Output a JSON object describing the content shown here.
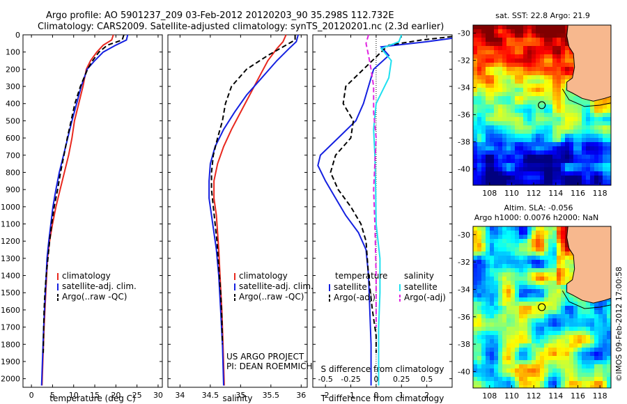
{
  "header": {
    "line1": "Argo profile: AO 5901237_209 03-Feb-2012 20120203_90 35.298S 112.732E",
    "line2": "Climatology: CARS2009. Satellite-adjusted climatology: synTS_20120201.nc (2.3d earlier)"
  },
  "side_text": "©IMOS 09-Feb-2012 17:00:58",
  "colors": {
    "climatology": "#e8281e",
    "satellite": "#1420e0",
    "argo": "#000000",
    "salinity_sat": "#1ee0f0",
    "salinity_argo": "#e024e0"
  },
  "chart_data": [
    {
      "type": "line",
      "id": "temperature",
      "xlabel": "temperature (deg C)",
      "xlim": [
        -2,
        31
      ],
      "ylim": [
        2050,
        0
      ],
      "xticks": [
        0,
        5,
        10,
        15,
        20,
        25,
        30
      ],
      "yticks": [
        0,
        100,
        200,
        300,
        400,
        500,
        600,
        700,
        800,
        900,
        1000,
        1100,
        1200,
        1300,
        1400,
        1500,
        1600,
        1700,
        1800,
        1900,
        2000
      ],
      "legend": [
        "climatology",
        "satellite-adj. clim.",
        "Argo(..raw -QC)"
      ],
      "series": [
        {
          "name": "climatology",
          "color": "#e8281e",
          "style": "solid",
          "points": [
            [
              19.4,
              0
            ],
            [
              19,
              30
            ],
            [
              17,
              60
            ],
            [
              15.5,
              100
            ],
            [
              14,
              150
            ],
            [
              13,
              200
            ],
            [
              12.2,
              300
            ],
            [
              11.2,
              400
            ],
            [
              10.2,
              500
            ],
            [
              9.6,
              600
            ],
            [
              8.8,
              700
            ],
            [
              7.8,
              800
            ],
            [
              6.8,
              900
            ],
            [
              5.8,
              1000
            ],
            [
              5,
              1100
            ],
            [
              4.3,
              1200
            ],
            [
              3.8,
              1300
            ],
            [
              3.4,
              1500
            ],
            [
              3,
              1700
            ],
            [
              2.7,
              1900
            ],
            [
              2.5,
              2040
            ]
          ]
        },
        {
          "name": "satellite-adj. clim.",
          "color": "#1420e0",
          "style": "solid",
          "points": [
            [
              22.8,
              0
            ],
            [
              22.5,
              30
            ],
            [
              20,
              60
            ],
            [
              17,
              100
            ],
            [
              15,
              150
            ],
            [
              13.2,
              200
            ],
            [
              11.8,
              300
            ],
            [
              10.7,
              400
            ],
            [
              9.6,
              500
            ],
            [
              8.6,
              600
            ],
            [
              7.6,
              700
            ],
            [
              6.6,
              800
            ],
            [
              5.8,
              900
            ],
            [
              5.1,
              1000
            ],
            [
              4.6,
              1100
            ],
            [
              4.1,
              1200
            ],
            [
              3.7,
              1300
            ],
            [
              3.3,
              1500
            ],
            [
              2.9,
              1700
            ],
            [
              2.6,
              1900
            ],
            [
              2.4,
              2040
            ]
          ]
        },
        {
          "name": "Argo(..raw -QC)",
          "color": "#000000",
          "style": "dashed",
          "points": [
            [
              21.9,
              0
            ],
            [
              21.5,
              30
            ],
            [
              18,
              60
            ],
            [
              16,
              100
            ],
            [
              14.5,
              150
            ],
            [
              13.3,
              200
            ],
            [
              11.6,
              300
            ],
            [
              10.3,
              400
            ],
            [
              9.4,
              500
            ],
            [
              8.5,
              600
            ],
            [
              7.7,
              700
            ],
            [
              6.9,
              800
            ],
            [
              6.2,
              900
            ],
            [
              5.4,
              1000
            ],
            [
              4.8,
              1100
            ],
            [
              4.3,
              1200
            ],
            [
              3.9,
              1300
            ],
            [
              3.5,
              1400
            ],
            [
              3.2,
              1500
            ],
            [
              3,
              1600
            ],
            [
              2.9,
              1700
            ],
            [
              2.8,
              1850
            ]
          ]
        }
      ]
    },
    {
      "type": "line",
      "id": "salinity",
      "xlabel": "salinity",
      "xlim": [
        33.8,
        36.1
      ],
      "ylim": [
        2050,
        0
      ],
      "xticks": [
        34,
        34.5,
        35,
        35.5,
        36
      ],
      "legend": [
        "climatology",
        "satellite-adj. clim.",
        "Argo(..raw -QC)"
      ],
      "annotation": [
        "US ARGO PROJECT",
        "PI: DEAN ROEMMICH"
      ],
      "series": [
        {
          "name": "climatology",
          "color": "#e8281e",
          "style": "solid",
          "points": [
            [
              35.75,
              0
            ],
            [
              35.7,
              40
            ],
            [
              35.6,
              80
            ],
            [
              35.45,
              150
            ],
            [
              35.3,
              250
            ],
            [
              35.15,
              350
            ],
            [
              35,
              450
            ],
            [
              34.85,
              550
            ],
            [
              34.72,
              650
            ],
            [
              34.62,
              750
            ],
            [
              34.56,
              850
            ],
            [
              34.56,
              950
            ],
            [
              34.6,
              1050
            ],
            [
              34.62,
              1150
            ],
            [
              34.64,
              1250
            ],
            [
              34.66,
              1400
            ],
            [
              34.69,
              1600
            ],
            [
              34.71,
              1800
            ],
            [
              34.73,
              2040
            ]
          ]
        },
        {
          "name": "satellite-adj. clim.",
          "color": "#1420e0",
          "style": "solid",
          "points": [
            [
              35.95,
              0
            ],
            [
              35.92,
              40
            ],
            [
              35.8,
              80
            ],
            [
              35.6,
              150
            ],
            [
              35.35,
              250
            ],
            [
              35.1,
              350
            ],
            [
              34.9,
              450
            ],
            [
              34.72,
              550
            ],
            [
              34.58,
              650
            ],
            [
              34.5,
              750
            ],
            [
              34.48,
              850
            ],
            [
              34.48,
              950
            ],
            [
              34.52,
              1050
            ],
            [
              34.56,
              1150
            ],
            [
              34.6,
              1250
            ],
            [
              34.64,
              1400
            ],
            [
              34.67,
              1600
            ],
            [
              34.7,
              1800
            ],
            [
              34.72,
              2040
            ]
          ]
        },
        {
          "name": "Argo(..raw -QC)",
          "color": "#000000",
          "style": "dashed",
          "points": [
            [
              35.9,
              0
            ],
            [
              35.9,
              30
            ],
            [
              35.75,
              60
            ],
            [
              35.45,
              120
            ],
            [
              35.1,
              200
            ],
            [
              34.85,
              300
            ],
            [
              34.75,
              400
            ],
            [
              34.7,
              500
            ],
            [
              34.62,
              600
            ],
            [
              34.55,
              700
            ],
            [
              34.52,
              800
            ],
            [
              34.52,
              900
            ],
            [
              34.55,
              1000
            ],
            [
              34.58,
              1100
            ],
            [
              34.61,
              1200
            ],
            [
              34.64,
              1350
            ],
            [
              34.67,
              1500
            ],
            [
              34.69,
              1650
            ],
            [
              34.7,
              1800
            ]
          ]
        }
      ]
    },
    {
      "type": "line",
      "id": "difference",
      "xlabel": "T difference from climatology",
      "xlabel_top": "S difference from climatology",
      "xlim": [
        -2.5,
        3
      ],
      "ylim": [
        2050,
        0
      ],
      "xticks": [
        -2,
        -1,
        0,
        1,
        2
      ],
      "xticks_top": [
        -0.5,
        -0.25,
        0,
        0.25,
        0.5
      ],
      "legend_headers": [
        "temperature",
        "salinity"
      ],
      "legend": [
        "satellite",
        "Argo(-adj)",
        "satellite",
        "Argo(-adj)"
      ],
      "series": [
        {
          "name": "satellite",
          "group": "temperature",
          "color": "#1420e0",
          "style": "solid",
          "points": [
            [
              3,
              20
            ],
            [
              2,
              40
            ],
            [
              0.2,
              70
            ],
            [
              0.5,
              120
            ],
            [
              -0.1,
              200
            ],
            [
              -0.3,
              300
            ],
            [
              -0.5,
              400
            ],
            [
              -0.8,
              500
            ],
            [
              -1.5,
              600
            ],
            [
              -2.2,
              700
            ],
            [
              -2.3,
              760
            ],
            [
              -2,
              850
            ],
            [
              -1.6,
              950
            ],
            [
              -1.2,
              1050
            ],
            [
              -0.7,
              1150
            ],
            [
              -0.4,
              1250
            ],
            [
              -0.3,
              1400
            ],
            [
              -0.25,
              1600
            ],
            [
              -0.2,
              1800
            ],
            [
              -0.2,
              2040
            ]
          ]
        },
        {
          "name": "Argo(-adj)",
          "group": "temperature",
          "color": "#000000",
          "style": "dashed",
          "points": [
            [
              3,
              10
            ],
            [
              1.8,
              30
            ],
            [
              0.5,
              60
            ],
            [
              0.2,
              100
            ],
            [
              -0.5,
              200
            ],
            [
              -1.2,
              300
            ],
            [
              -1.3,
              400
            ],
            [
              -0.9,
              500
            ],
            [
              -1,
              600
            ],
            [
              -1.6,
              700
            ],
            [
              -1.8,
              800
            ],
            [
              -1.5,
              900
            ],
            [
              -1,
              1000
            ],
            [
              -0.6,
              1100
            ],
            [
              -0.4,
              1200
            ],
            [
              -0.3,
              1400
            ],
            [
              -0.15,
              1600
            ],
            [
              0,
              1750
            ],
            [
              0,
              1850
            ]
          ]
        },
        {
          "name": "satellite",
          "group": "salinity",
          "color": "#1ee0f0",
          "style": "solid",
          "points": [
            [
              1,
              0
            ],
            [
              0.9,
              40
            ],
            [
              0.2,
              80
            ],
            [
              0.6,
              150
            ],
            [
              0.5,
              250
            ],
            [
              0,
              400
            ],
            [
              -0.1,
              550
            ],
            [
              -0.05,
              700
            ],
            [
              -0.02,
              900
            ],
            [
              0,
              1100
            ],
            [
              0.15,
              1300
            ],
            [
              0.15,
              1500
            ],
            [
              0.1,
              1700
            ],
            [
              0.1,
              1900
            ],
            [
              0.1,
              2040
            ]
          ]
        },
        {
          "name": "Argo(-adj)",
          "group": "salinity",
          "color": "#e024e0",
          "style": "dashed",
          "points": [
            [
              -0.3,
              0
            ],
            [
              -0.4,
              50
            ],
            [
              -0.3,
              120
            ],
            [
              -0.2,
              200
            ],
            [
              -0.1,
              300
            ],
            [
              -0.1,
              450
            ],
            [
              0,
              600
            ],
            [
              -0.05,
              750
            ],
            [
              -0.1,
              900
            ],
            [
              -0.05,
              1100
            ],
            [
              0,
              1400
            ],
            [
              0,
              1700
            ]
          ]
        }
      ]
    }
  ],
  "maps": [
    {
      "id": "sst",
      "title": "sat. SST: 22.8  Argo: 21.9",
      "xticks": [
        108,
        110,
        112,
        114,
        116,
        118
      ],
      "yticks": [
        -30,
        -32,
        -34,
        -36,
        -38,
        -40
      ],
      "xlim": [
        106.5,
        119
      ],
      "ylim": [
        -41.2,
        -29.4
      ],
      "marker": [
        112.732,
        -35.298
      ]
    },
    {
      "id": "sla",
      "title_lines": [
        "Altim. SLA: -0.056",
        "Argo h1000: 0.0076 h2000: NaN"
      ],
      "xticks": [
        108,
        110,
        112,
        114,
        116,
        118
      ],
      "yticks": [
        -30,
        -32,
        -34,
        -36,
        -38,
        -40
      ],
      "xlim": [
        106.5,
        119
      ],
      "ylim": [
        -41.2,
        -29.4
      ],
      "marker": [
        112.732,
        -35.298
      ]
    }
  ]
}
